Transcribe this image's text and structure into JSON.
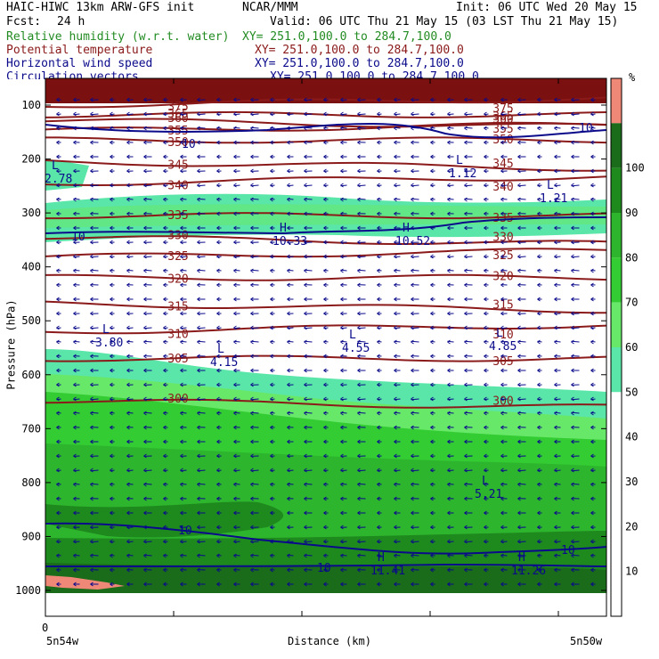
{
  "header": {
    "model": "HAIC-HIWC 13km ARW-GFS init",
    "org": "NCAR/MMM",
    "init": "Init: 06 UTC Wed 20 May 15",
    "fcst_label": "Fcst:",
    "fcst_value": "24 h",
    "valid": "Valid: 06 UTC Thu 21 May 15 (03 LST Thu 21 May 15)",
    "fields": [
      {
        "name": "Relative humidity (w.r.t. water)",
        "xy": "XY= 251.0,100.0 to 284.7,100.0",
        "color": "#228b22"
      },
      {
        "name": "Potential temperature",
        "xy": "XY= 251.0,100.0 to 284.7,100.0",
        "color": "#8b1a1a"
      },
      {
        "name": "Horizontal wind speed",
        "xy": "XY= 251.0,100.0 to 284.7,100.0",
        "color": "#0a0a8b"
      },
      {
        "name": "Circulation vectors",
        "xy": "XY= 251.0,100.0 to 284.7,100.0",
        "color": "#0a0a8b"
      }
    ]
  },
  "chart_data": {
    "type": "heatmap",
    "title": "",
    "xlabel": "Distance (km)",
    "ylabel": "Pressure (hPa)",
    "x_tick_labels": [
      "0"
    ],
    "x_endpoint_labels": [
      "5n54w",
      "5n50w"
    ],
    "yticks": [
      100,
      200,
      300,
      400,
      500,
      600,
      700,
      800,
      900,
      1000
    ],
    "ylim": [
      1050,
      50
    ],
    "colorbar": {
      "unit": "%",
      "levels": [
        10,
        20,
        30,
        40,
        50,
        60,
        70,
        80,
        90,
        100
      ],
      "colors": [
        "#ffffff",
        "#ffffff",
        "#ffffff",
        "#ffffff",
        "#ffffff",
        "#5ae6a8",
        "#68e868",
        "#33cc33",
        "#2eb52e",
        "#1e8a1e",
        "#1a6b1a",
        "#f08878"
      ]
    },
    "theta_contours": [
      {
        "label": "375",
        "p": 100
      },
      {
        "label": "365",
        "p": 118
      },
      {
        "label": "360",
        "p": 128
      },
      {
        "label": "355",
        "p": 148
      },
      {
        "label": "350",
        "p": 165
      },
      {
        "label": "345",
        "p": 205
      },
      {
        "label": "340",
        "p": 245
      },
      {
        "label": "335",
        "p": 305
      },
      {
        "label": "330",
        "p": 345
      },
      {
        "label": "325",
        "p": 382
      },
      {
        "label": "320",
        "p": 420
      },
      {
        "label": "315",
        "p": 468
      },
      {
        "label": "310",
        "p": 520
      },
      {
        "label": "305",
        "p": 570
      },
      {
        "label": "300",
        "p": 648
      }
    ],
    "wind_labels": [
      {
        "text": "L",
        "sub": "2.78"
      },
      {
        "text": "L",
        "sub": "1.12"
      },
      {
        "text": "L",
        "sub": "1.21"
      },
      {
        "text": "H",
        "sub": "10.33"
      },
      {
        "text": "H",
        "sub": "10.52"
      },
      {
        "text": "L",
        "sub": "3.80"
      },
      {
        "text": "L",
        "sub": "4.15"
      },
      {
        "text": "L",
        "sub": "4.55"
      },
      {
        "text": "L",
        "sub": "4.85"
      },
      {
        "text": "L",
        "sub": "5.21"
      },
      {
        "text": "H",
        "sub": "11.41"
      },
      {
        "text": "H",
        "sub": "11.26"
      }
    ],
    "wind_contour_labels": [
      "10",
      "10",
      "10",
      "10",
      "10",
      "10"
    ],
    "legend_placement": "right",
    "grid": false
  }
}
